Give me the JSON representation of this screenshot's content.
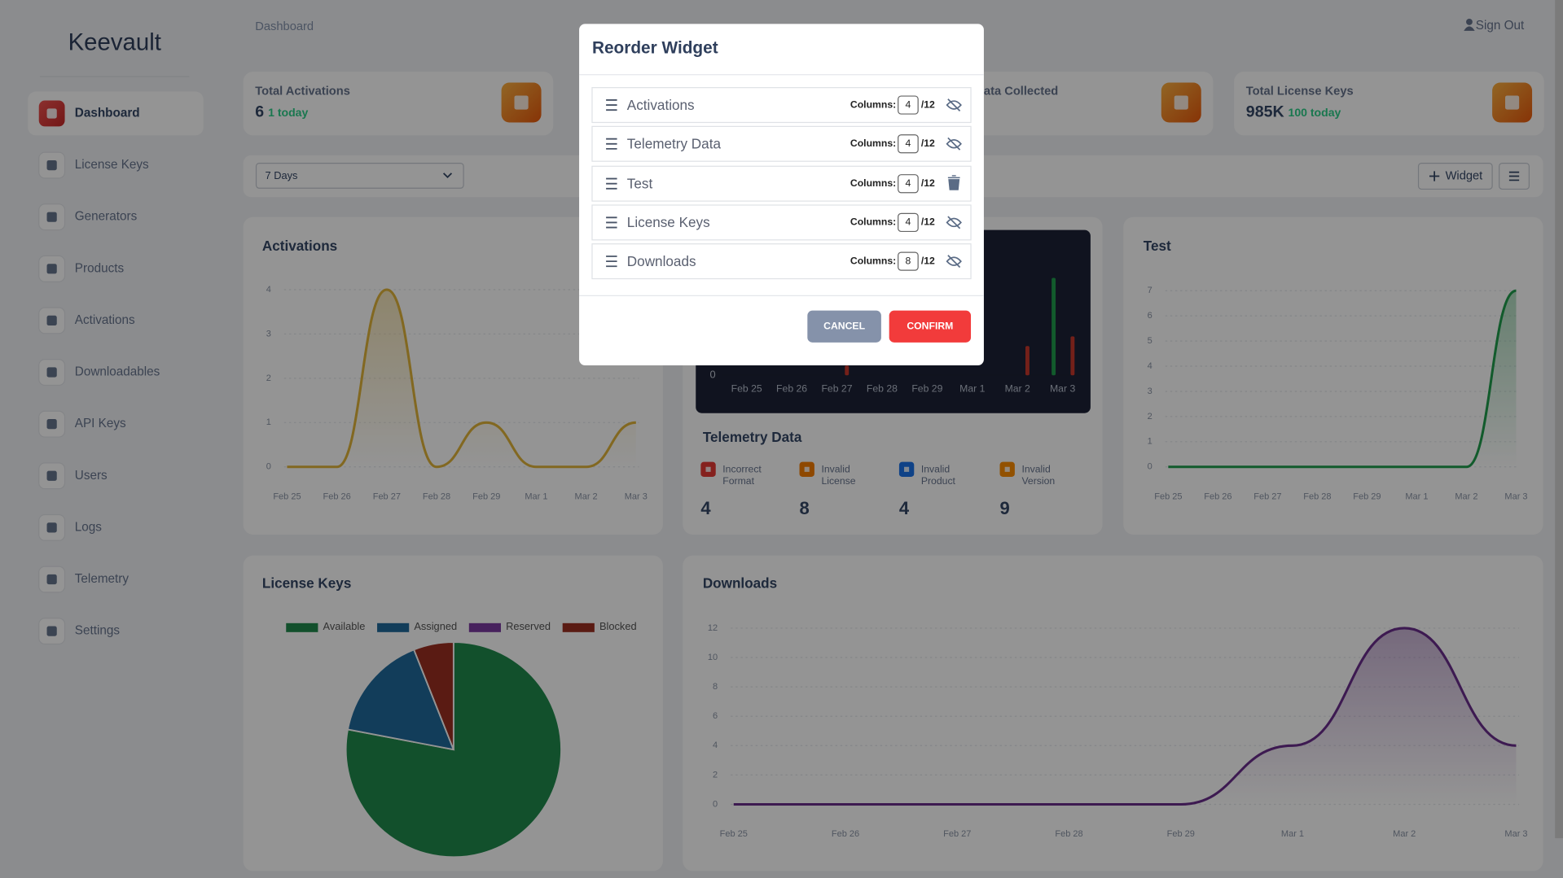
{
  "sidebar": {
    "brand": "Keevault",
    "nav": [
      "Dashboard",
      "License Keys",
      "Generators",
      "Products",
      "Activations",
      "Downloadables",
      "API Keys",
      "Users",
      "Logs",
      "Telemetry",
      "Settings"
    ]
  },
  "header": {
    "breadcrumb": "Dashboard",
    "sign_out": "Sign Out"
  },
  "stats": [
    {
      "label": "Total Activations",
      "value": "6",
      "today": "1 today"
    },
    {
      "label": "ata Collected"
    },
    {
      "label": "Total License Keys",
      "value": "985K",
      "today": "100 today"
    }
  ],
  "toolbar": {
    "range": "7 Days",
    "add_widget": "Widget"
  },
  "widgets": {
    "activations": {
      "type": "line",
      "title": "Activations",
      "color": "#e0b43a",
      "categories": [
        "Feb 25",
        "Feb 26",
        "Feb 27",
        "Feb 28",
        "Feb 29",
        "Mar 1",
        "Mar 2",
        "Mar 3"
      ],
      "values": [
        0,
        0,
        4,
        0,
        1,
        0,
        0,
        1
      ],
      "ylim": [
        0,
        4
      ],
      "yticks": [
        0,
        1,
        2,
        3,
        4
      ],
      "grid": true
    },
    "telemetry": {
      "type": "bar",
      "title": "Telemetry Data",
      "categories": [
        "Feb 25",
        "Feb 26",
        "Feb 27",
        "Feb 28",
        "Feb 29",
        "Mar 1",
        "Mar 2",
        "Mar 3"
      ],
      "series": [
        {
          "color": "#1f9d4c",
          "values": [
            0,
            0,
            0,
            0,
            0,
            0,
            0,
            10
          ]
        },
        {
          "color": "#c8372c",
          "values": [
            0,
            0,
            1,
            0,
            0,
            0,
            3,
            4
          ]
        }
      ],
      "ylim": [
        0,
        14
      ],
      "yticks": [
        0
      ],
      "counters": [
        {
          "label": "Incorrect Format",
          "value": "4",
          "color": "#e53935"
        },
        {
          "label": "Invalid License",
          "value": "8",
          "color": "#f57c00"
        },
        {
          "label": "Invalid Product",
          "value": "4",
          "color": "#1a73e8"
        },
        {
          "label": "Invalid Version",
          "value": "9",
          "color": "#fb8c00"
        }
      ]
    },
    "test": {
      "type": "line",
      "title": "Test",
      "color": "#1f9d4c",
      "categories": [
        "Feb 25",
        "Feb 26",
        "Feb 27",
        "Feb 28",
        "Feb 29",
        "Mar 1",
        "Mar 2",
        "Mar 3"
      ],
      "values": [
        0,
        0,
        0,
        0,
        0,
        0,
        0,
        7
      ],
      "ylim": [
        0,
        7
      ],
      "yticks": [
        0,
        1,
        2,
        3,
        4,
        5,
        6,
        7
      ],
      "grid": true
    },
    "license_keys": {
      "type": "pie",
      "title": "License Keys",
      "categories": [
        "Available",
        "Assigned",
        "Reserved",
        "Blocked"
      ],
      "values": [
        78,
        16,
        0,
        6
      ],
      "colors": [
        "#1f8a4c",
        "#1f6a9b",
        "#7a3aa0",
        "#9b2f22"
      ],
      "legend": "top"
    },
    "downloads": {
      "type": "line",
      "title": "Downloads",
      "color": "#6a2d8c",
      "categories": [
        "Feb 25",
        "Feb 26",
        "Feb 27",
        "Feb 28",
        "Feb 29",
        "Mar 1",
        "Mar 2",
        "Mar 3"
      ],
      "values": [
        0,
        0,
        0,
        0,
        0,
        4,
        12,
        4
      ],
      "ylim": [
        0,
        12
      ],
      "yticks": [
        0,
        2,
        4,
        6,
        8,
        10,
        12
      ],
      "grid": true
    }
  },
  "modal": {
    "title": "Reorder Widget",
    "columns_label": "Columns:",
    "columns_max": "/12",
    "widgets": [
      {
        "name": "Activations",
        "columns": "4",
        "action": "hide"
      },
      {
        "name": "Telemetry Data",
        "columns": "4",
        "action": "hide"
      },
      {
        "name": "Test",
        "columns": "4",
        "action": "delete"
      },
      {
        "name": "License Keys",
        "columns": "4",
        "action": "hide"
      },
      {
        "name": "Downloads",
        "columns": "8",
        "action": "hide"
      }
    ],
    "cancel": "CANCEL",
    "confirm": "CONFIRM"
  }
}
